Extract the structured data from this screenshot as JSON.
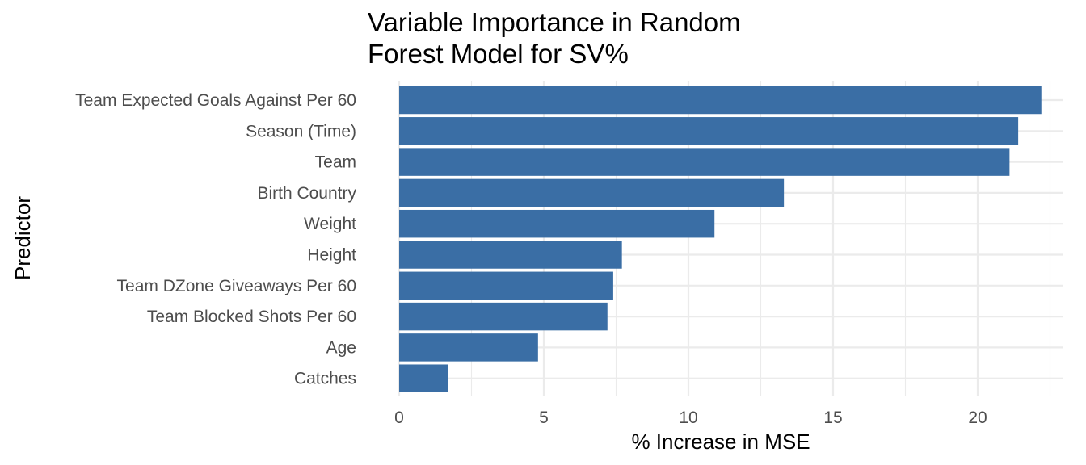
{
  "chart_data": {
    "type": "bar",
    "orientation": "horizontal",
    "title_lines": [
      "Variable Importance in Random",
      "Forest Model for SV%"
    ],
    "xlabel": "% Increase in MSE",
    "ylabel": "Predictor",
    "categories": [
      "Team Expected Goals Against Per 60",
      "Season (Time)",
      "Team",
      "Birth Country",
      "Weight",
      "Height",
      "Team DZone Giveaways Per 60",
      "Team Blocked Shots Per 60",
      "Age",
      "Catches"
    ],
    "values": [
      22.2,
      21.4,
      21.1,
      13.3,
      10.9,
      7.7,
      7.4,
      7.2,
      4.8,
      1.7
    ],
    "xlim": [
      0,
      22.7
    ],
    "x_ticks": [
      0,
      5,
      10,
      15,
      20
    ],
    "x_tick_labels": [
      "0",
      "5",
      "10",
      "15",
      "20"
    ],
    "bar_color": "#3a6ea5",
    "grid": true,
    "legend": "none"
  }
}
